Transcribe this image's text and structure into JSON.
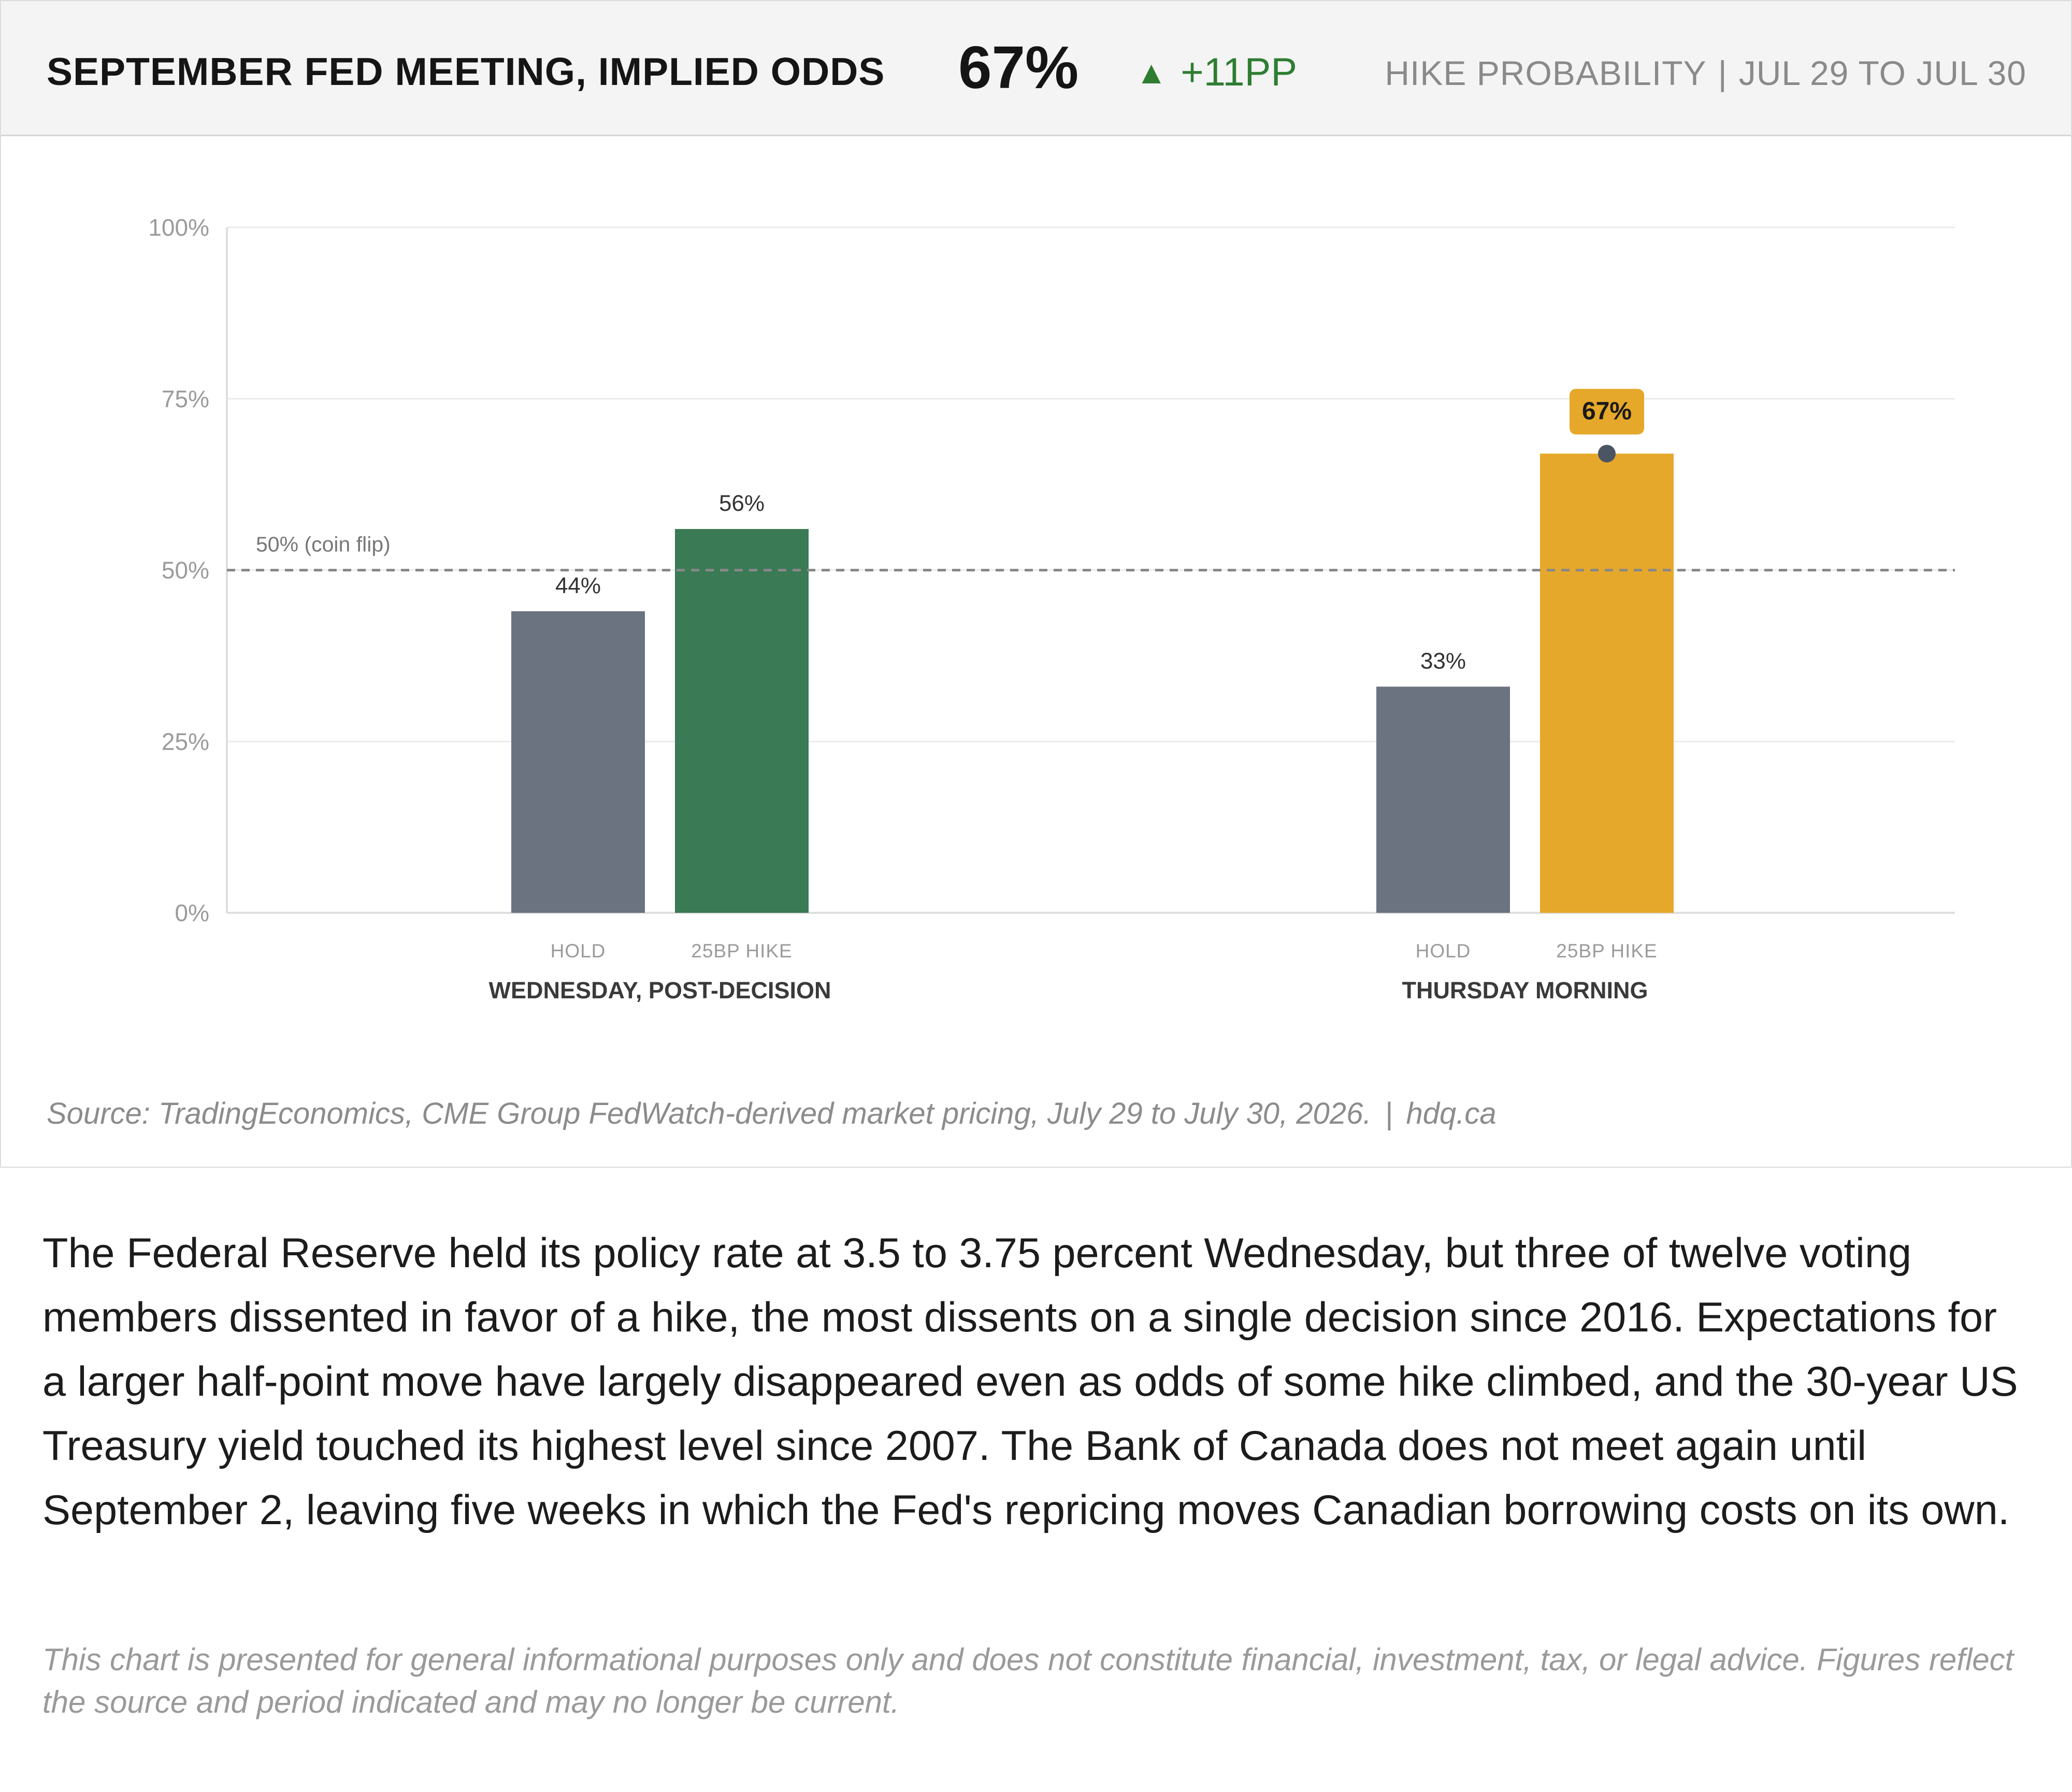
{
  "header": {
    "title": "SEPTEMBER FED MEETING, IMPLIED ODDS",
    "value": "67%",
    "change_arrow": "▲",
    "change": "+11PP",
    "subtitle": "HIKE PROBABILITY",
    "separator": "|",
    "period": "JUL 29 TO JUL 30"
  },
  "colors": {
    "hold": "#6b7280",
    "hike_wednesday": "#3a7a55",
    "hike_thursday": "#e6a82a",
    "change_positive": "#2e7d32",
    "reference_line": "#888888",
    "marker": "#4b5563"
  },
  "chart_data": {
    "type": "bar",
    "groups": [
      "WEDNESDAY, POST-DECISION",
      "THURSDAY MORNING"
    ],
    "categories": [
      "HOLD",
      "25BP HIKE"
    ],
    "bars": [
      {
        "group": "WEDNESDAY, POST-DECISION",
        "category": "HOLD",
        "value": 44,
        "label": "44%",
        "color": "#6b7280"
      },
      {
        "group": "WEDNESDAY, POST-DECISION",
        "category": "25BP HIKE",
        "value": 56,
        "label": "56%",
        "color": "#3a7a55"
      },
      {
        "group": "THURSDAY MORNING",
        "category": "HOLD",
        "value": 33,
        "label": "33%",
        "color": "#6b7280"
      },
      {
        "group": "THURSDAY MORNING",
        "category": "25BP HIKE",
        "value": 67,
        "label": "67%",
        "color": "#e6a82a",
        "highlight": true
      }
    ],
    "ylim": [
      0,
      100
    ],
    "yticks": [
      0,
      25,
      50,
      75,
      100
    ],
    "ytick_labels": [
      "0%",
      "25%",
      "50%",
      "75%",
      "100%"
    ],
    "reference_line": {
      "value": 50,
      "label": "50% (coin flip)",
      "style": "dashed"
    },
    "grid": true,
    "legend": "none"
  },
  "source": {
    "text": "Source: TradingEconomics, CME Group FedWatch-derived market pricing, July 29 to July 30, 2026.",
    "separator": "|",
    "site": "hdq.ca"
  },
  "body": {
    "paragraph": "The Federal Reserve held its policy rate at 3.5 to 3.75 percent Wednesday, but three of twelve voting members dissented in favor of a hike, the most dissents on a single decision since 2016. Expectations for a larger half-point move have largely disappeared even as odds of some hike climbed, and the 30-year US Treasury yield touched its highest level since 2007. The Bank of Canada does not meet again until September 2, leaving five weeks in which the Fed's repricing moves Canadian borrowing costs on its own."
  },
  "disclaimer": {
    "text": "This chart is presented for general informational purposes only and does not constitute financial, investment, tax, or legal advice. Figures reflect the source and period indicated and may no longer be current."
  }
}
